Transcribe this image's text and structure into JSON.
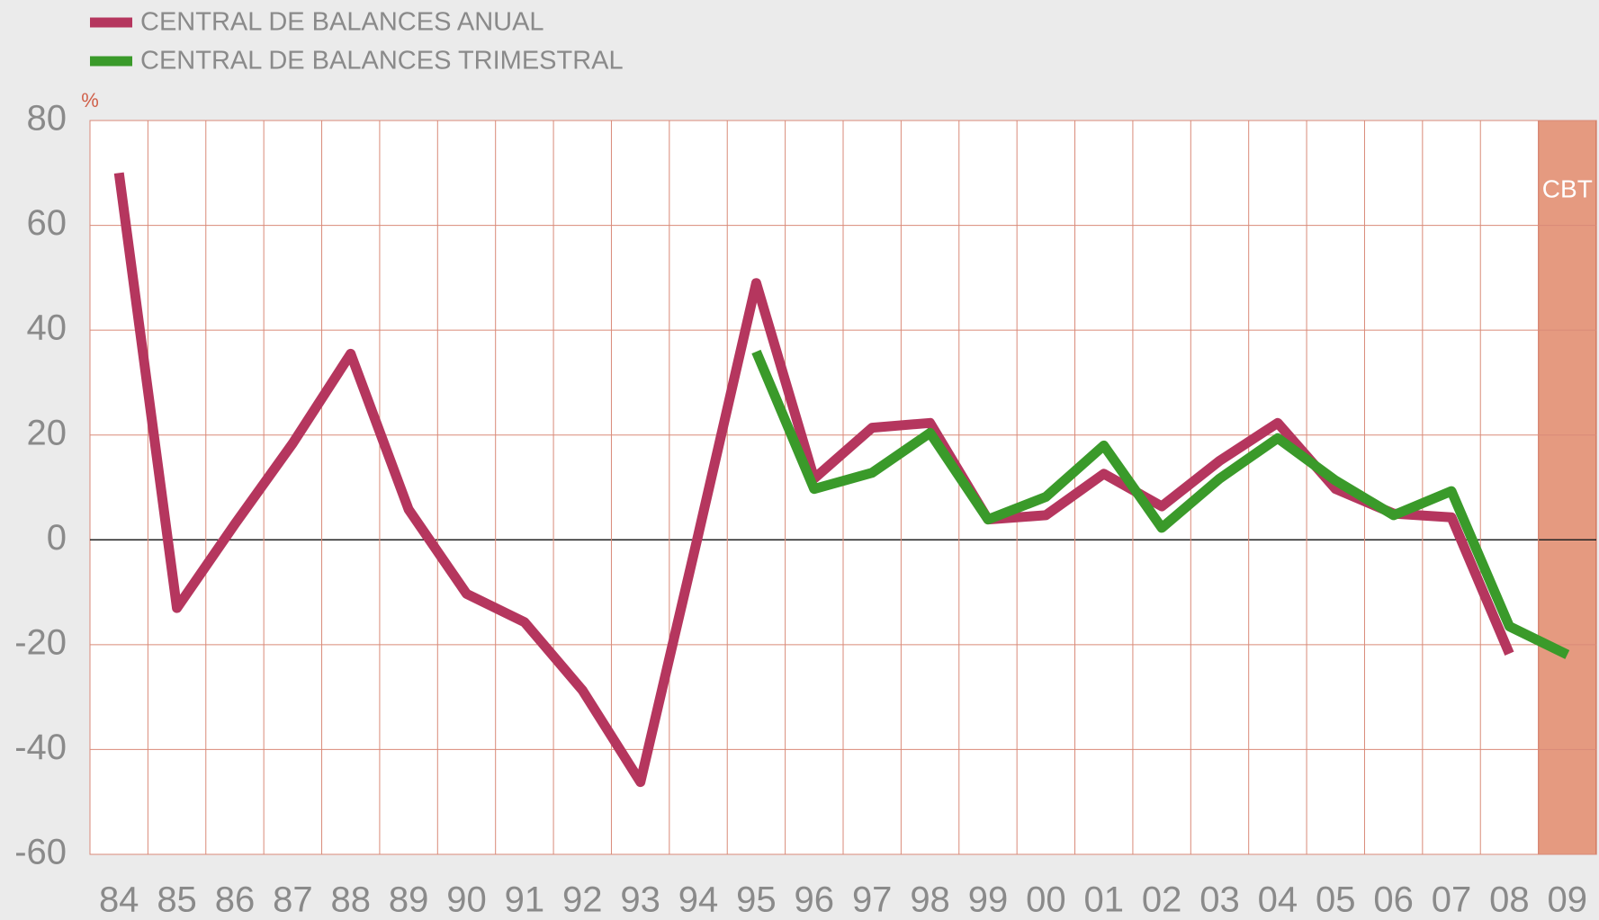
{
  "chart_data": {
    "type": "line",
    "ylabel": "%",
    "categories": [
      "84",
      "85",
      "86",
      "87",
      "88",
      "89",
      "90",
      "91",
      "92",
      "93",
      "94",
      "95",
      "96",
      "97",
      "98",
      "99",
      "00",
      "01",
      "02",
      "03",
      "04",
      "05",
      "06",
      "07",
      "08",
      "09"
    ],
    "series": [
      {
        "name": "CENTRAL DE BALANCES ANUAL",
        "color": "#b5365e",
        "values": [
          70,
          -13,
          3,
          18.4,
          35.5,
          5.8,
          -10.3,
          -15.7,
          -28.7,
          -46.2,
          1,
          49,
          11.7,
          21.4,
          22.3,
          3.9,
          4.7,
          12.6,
          6.4,
          15.1,
          22.3,
          9.7,
          5,
          4.3,
          -21.7,
          null
        ]
      },
      {
        "name": "CENTRAL DE BALANCES TRIMESTRAL",
        "color": "#3a9a2a",
        "values": [
          null,
          null,
          null,
          null,
          null,
          null,
          null,
          null,
          null,
          null,
          null,
          35.9,
          9.7,
          12.8,
          20.4,
          3.9,
          8.2,
          18,
          2.3,
          11.7,
          19.4,
          11.3,
          4.7,
          9.3,
          -16.5,
          -21.9
        ]
      }
    ],
    "ylim": [
      -60,
      80
    ],
    "yticks": [
      -60,
      -40,
      -20,
      0,
      20,
      40,
      60,
      80
    ],
    "grid": true,
    "highlight_category": "09",
    "highlight_label": "CBT"
  }
}
